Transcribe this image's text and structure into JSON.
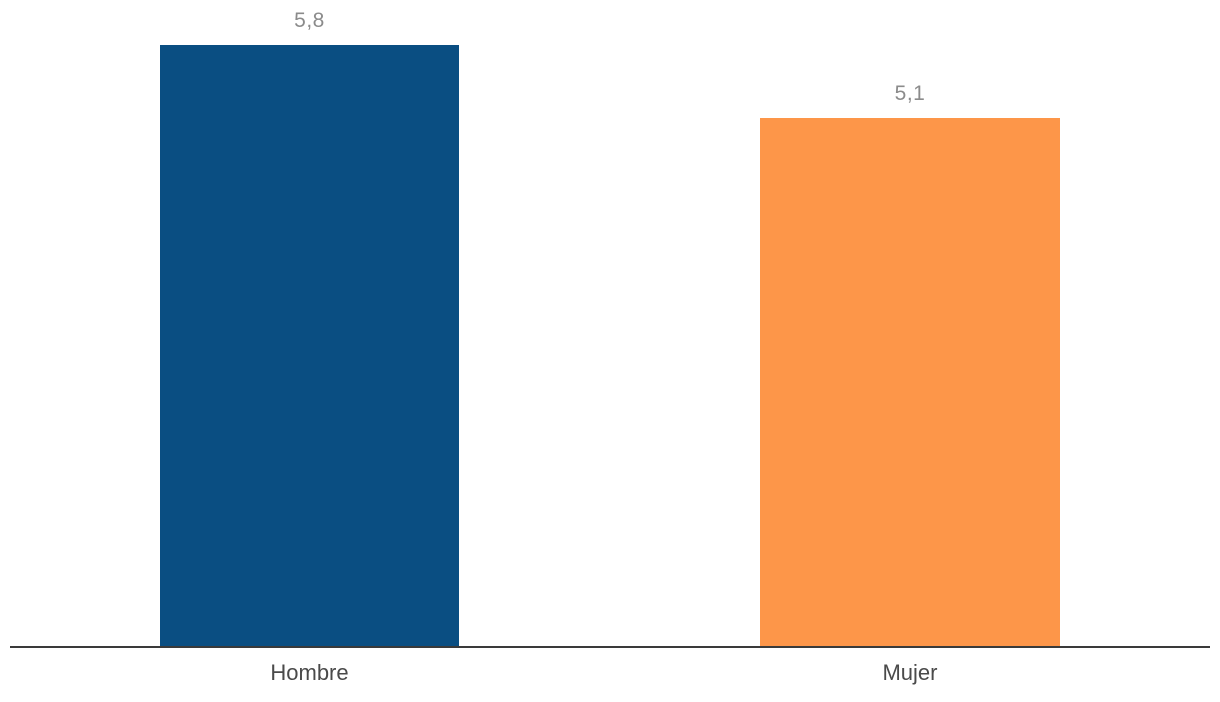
{
  "chart_data": {
    "type": "bar",
    "categories": [
      "Hombre",
      "Mujer"
    ],
    "values": [
      5.8,
      5.1
    ],
    "value_labels": [
      "5,8",
      "5,1"
    ],
    "series_colors": [
      "#0A4E82",
      "#FD9649"
    ],
    "title": "",
    "xlabel": "",
    "ylabel": "",
    "ylim": [
      0,
      5.8
    ],
    "grid": false,
    "legend": false,
    "decimal_separator": ",",
    "value_label_color": "#8B8B8B",
    "category_label_color": "#4A4A4A",
    "axis_line_color": "#3A3A3A",
    "background": "#FFFFFF"
  }
}
